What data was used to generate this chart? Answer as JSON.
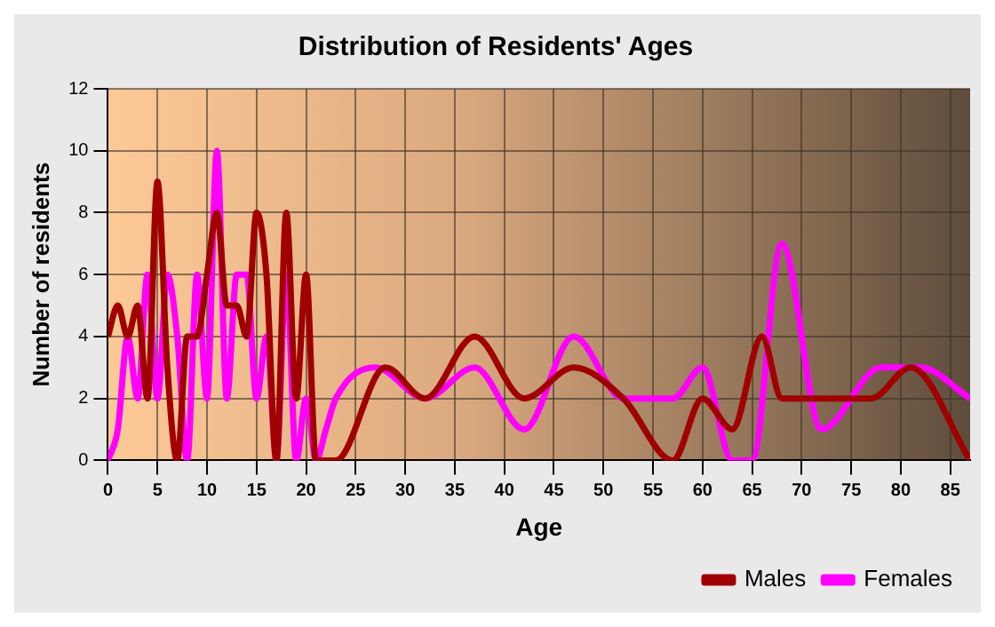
{
  "chart_data": {
    "type": "line",
    "title": "Distribution of Residents' Ages",
    "xlabel": "Age",
    "ylabel": "Number of residents",
    "xlim": [
      0,
      87
    ],
    "xticks": [
      0,
      5,
      10,
      15,
      20,
      25,
      30,
      35,
      40,
      45,
      50,
      55,
      60,
      65,
      70,
      75,
      80,
      85
    ],
    "ylim": [
      0,
      12
    ],
    "yticks": [
      0,
      2,
      4,
      6,
      8,
      10,
      12
    ],
    "grid": true,
    "legend": "bottom right",
    "marker": "none",
    "line_style": "solid",
    "series": [
      {
        "name": "Males",
        "color": "#a00000",
        "x": [
          0,
          1,
          2,
          3,
          4,
          5,
          6,
          7,
          8,
          9,
          10,
          11,
          12,
          13,
          14,
          15,
          16,
          17,
          18,
          19,
          20,
          21,
          22,
          23,
          28,
          32,
          37,
          42,
          47,
          52,
          57,
          60,
          63,
          66,
          68,
          72,
          77,
          81,
          87
        ],
        "values": [
          4,
          5,
          4,
          5,
          2,
          9,
          3,
          0,
          4,
          4,
          6,
          8,
          5,
          5,
          4,
          8,
          6,
          0,
          8,
          2,
          6,
          0,
          0,
          0,
          3,
          2,
          4,
          2,
          3,
          2,
          0,
          2,
          1,
          4,
          2,
          2,
          2,
          3,
          0
        ]
      },
      {
        "name": "Females",
        "color": "#ff00ff",
        "x": [
          0,
          1,
          2,
          3,
          4,
          5,
          6,
          7,
          8,
          9,
          10,
          11,
          12,
          13,
          14,
          15,
          16,
          17,
          18,
          19,
          20,
          21,
          22,
          23,
          27,
          32,
          37,
          42,
          47,
          52,
          57,
          60,
          63,
          65,
          68,
          72,
          78,
          82,
          87
        ],
        "values": [
          0,
          1,
          4,
          2,
          6,
          2,
          6,
          4,
          0,
          6,
          2,
          10,
          2,
          6,
          6,
          2,
          4,
          0,
          6,
          0,
          2,
          0,
          1,
          2,
          3,
          2,
          3,
          1,
          4,
          2,
          2,
          3,
          0,
          0,
          7,
          1,
          3,
          3,
          2
        ]
      }
    ]
  }
}
